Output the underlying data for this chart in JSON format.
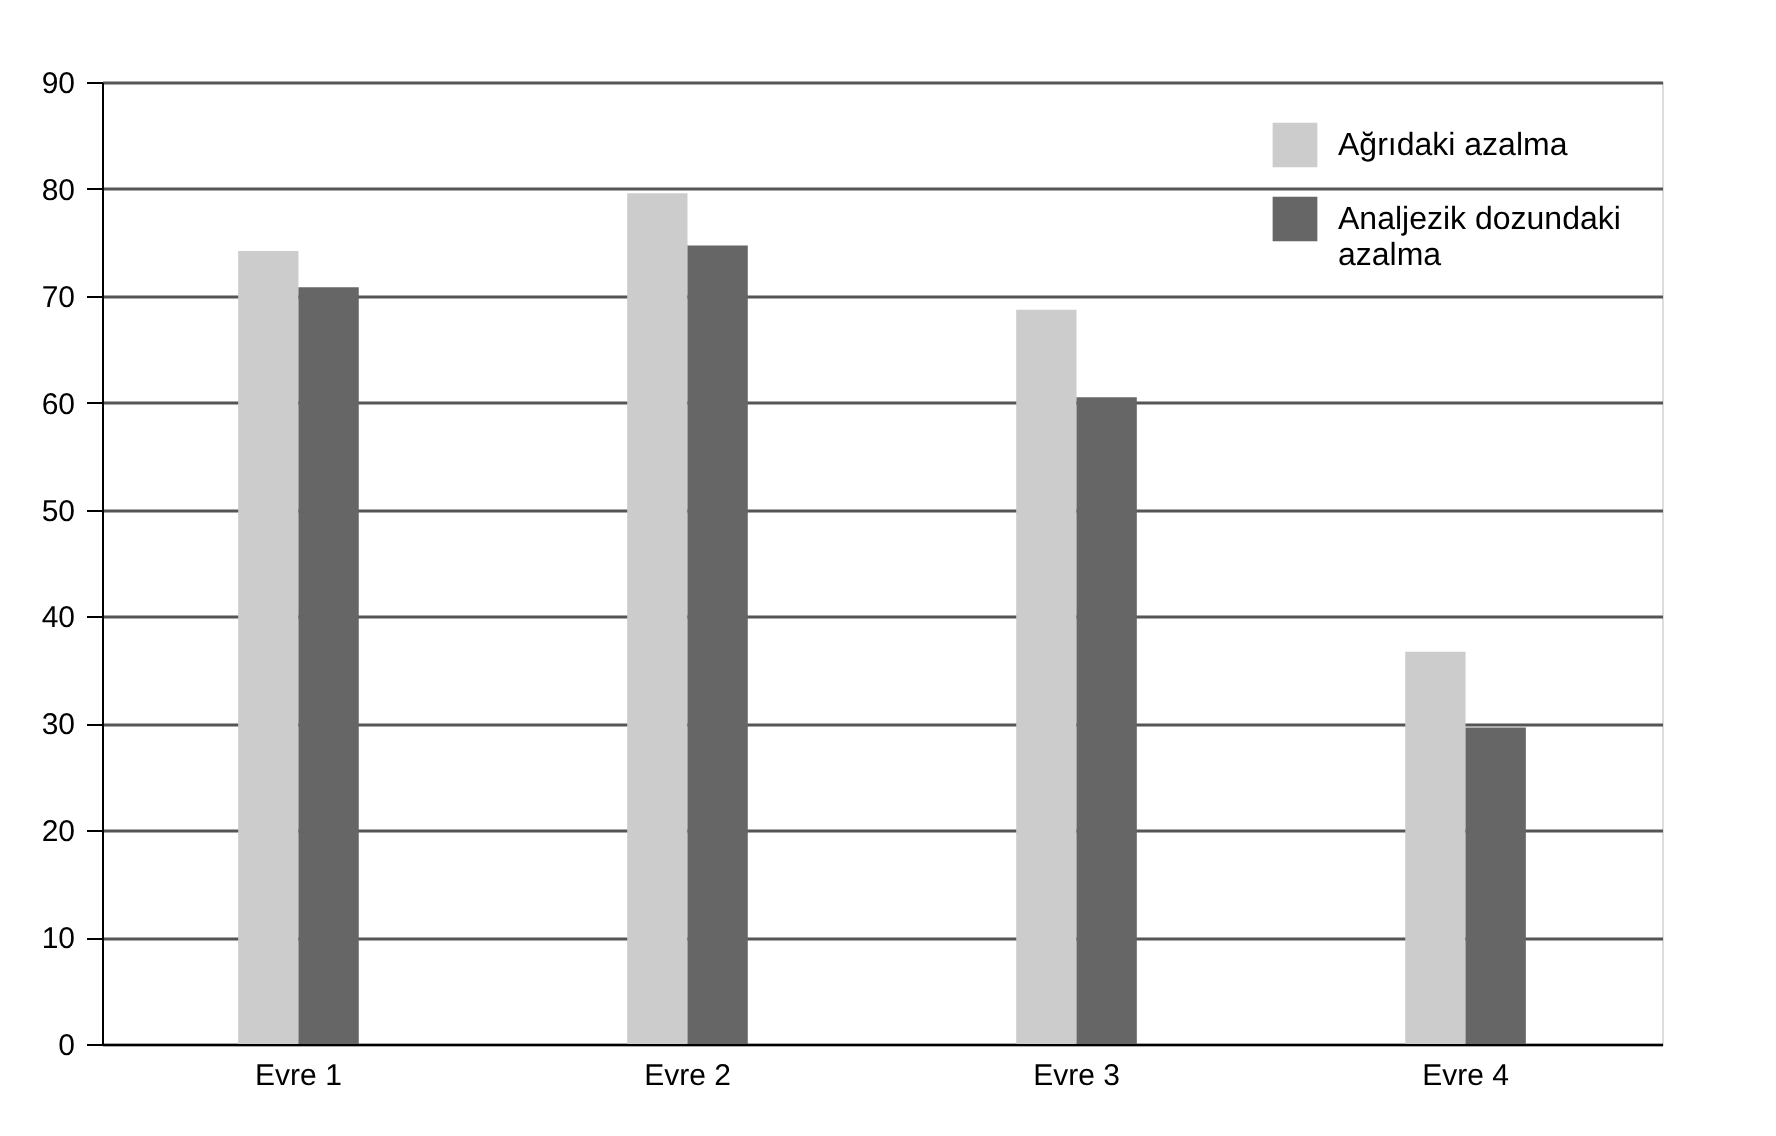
{
  "chart_data": {
    "type": "bar",
    "categories": [
      "Evre 1",
      "Evre 2",
      "Evre 3",
      "Evre 4"
    ],
    "series": [
      {
        "name": "Ağrıdaki azalma",
        "color": "#cccccc",
        "values": [
          74.2,
          79.6,
          68.7,
          36.7
        ]
      },
      {
        "name": "Analjezik dozundaki azalma",
        "color": "#666666",
        "values": [
          70.8,
          74.7,
          60.5,
          29.6
        ]
      }
    ],
    "ylim": [
      0,
      90
    ],
    "yticks": [
      0,
      10,
      20,
      30,
      40,
      50,
      60,
      70,
      80,
      90
    ],
    "grid": "y",
    "legend": "top right"
  }
}
